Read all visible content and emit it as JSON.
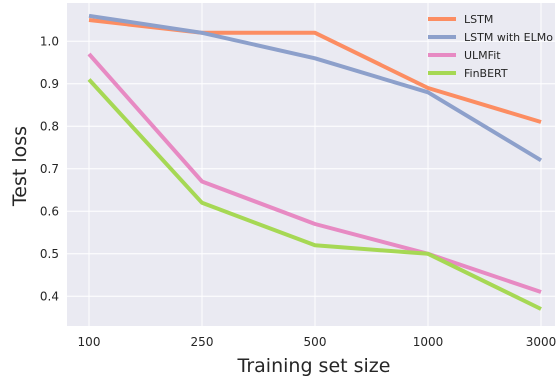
{
  "chart_data": {
    "type": "line",
    "xlabel": "Training set size",
    "ylabel": "Test loss",
    "categories": [
      "100",
      "250",
      "500",
      "1000",
      "3000"
    ],
    "x_scale": "categorical",
    "ylim": [
      0.33,
      1.09
    ],
    "yticks": [
      "0.4",
      "0.5",
      "0.6",
      "0.7",
      "0.8",
      "0.9",
      "1.0"
    ],
    "grid": true,
    "legend_position": "top-right",
    "background_color": "#eaeaf2",
    "grid_color": "#ffffff",
    "series": [
      {
        "name": "LSTM",
        "color": "#fc8d62",
        "values": [
          1.05,
          1.02,
          1.02,
          0.89,
          0.81
        ]
      },
      {
        "name": "LSTM with ELMo",
        "color": "#8da0cb",
        "values": [
          1.06,
          1.02,
          0.96,
          0.88,
          0.72
        ]
      },
      {
        "name": "ULMFit",
        "color": "#e78ac3",
        "values": [
          0.97,
          0.67,
          0.57,
          0.5,
          0.41
        ]
      },
      {
        "name": "FinBERT",
        "color": "#a6d854",
        "values": [
          0.91,
          0.62,
          0.52,
          0.5,
          0.37
        ]
      }
    ]
  }
}
